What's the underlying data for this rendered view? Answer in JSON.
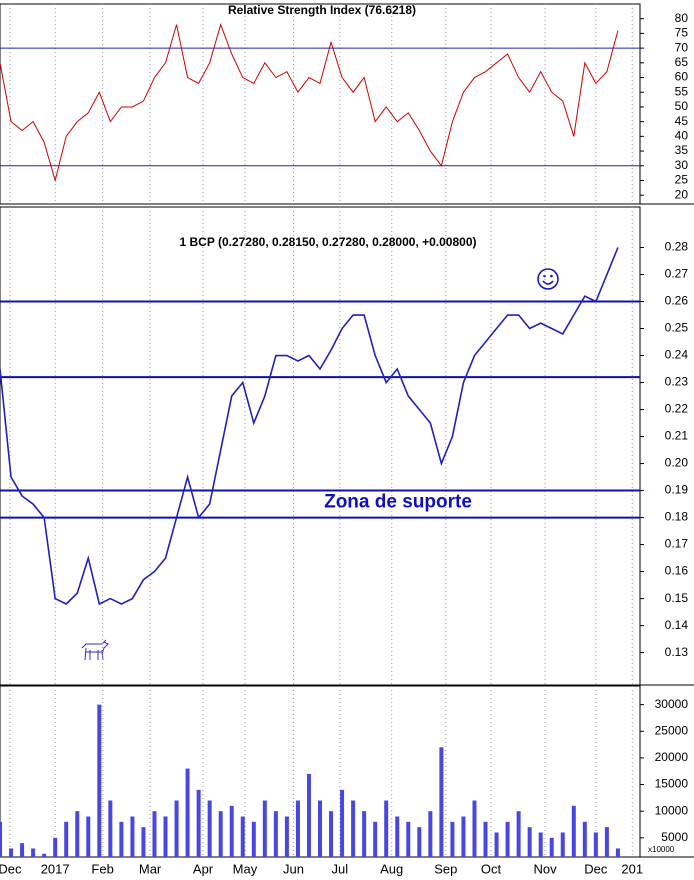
{
  "chart_data": [
    {
      "type": "line",
      "title": "Relative Strength Index (76.6218)",
      "x": [
        0,
        1,
        2,
        3,
        4,
        5,
        6,
        7,
        8,
        9,
        10,
        11,
        12,
        13,
        14,
        15,
        16,
        17,
        18,
        19,
        20,
        21,
        22,
        23,
        24,
        25,
        26,
        27,
        28,
        29,
        30,
        31,
        32,
        33,
        34,
        35,
        36,
        37,
        38,
        39,
        40,
        41,
        42,
        43,
        44,
        45,
        46,
        47,
        48,
        49,
        50,
        51,
        52,
        53,
        54,
        55,
        56
      ],
      "series": [
        {
          "name": "RSI",
          "color": "#d00000",
          "values": [
            65,
            45,
            42,
            45,
            38,
            25,
            40,
            45,
            48,
            55,
            45,
            50,
            50,
            52,
            60,
            65,
            78,
            60,
            58,
            65,
            78,
            68,
            60,
            58,
            65,
            60,
            62,
            55,
            60,
            58,
            72,
            60,
            55,
            60,
            45,
            50,
            45,
            48,
            42,
            35,
            30,
            45,
            55,
            60,
            62,
            65,
            68,
            60,
            55,
            62,
            55,
            52,
            40,
            65,
            58,
            62,
            76
          ]
        }
      ],
      "hlines": [
        70,
        30
      ],
      "hline_color": "#2020b0",
      "xlim": [
        0,
        58
      ],
      "ylim": [
        17,
        85
      ],
      "yticks": [
        20,
        25,
        30,
        35,
        40,
        45,
        50,
        55,
        60,
        65,
        70,
        75,
        80
      ]
    },
    {
      "type": "line",
      "title": "1 BCP (0.27280, 0.28150, 0.27280, 0.28000, +0.00800)",
      "annotation": "Zona de suporte",
      "x": [
        0,
        1,
        2,
        3,
        4,
        5,
        6,
        7,
        8,
        9,
        10,
        11,
        12,
        13,
        14,
        15,
        16,
        17,
        18,
        19,
        20,
        21,
        22,
        23,
        24,
        25,
        26,
        27,
        28,
        29,
        30,
        31,
        32,
        33,
        34,
        35,
        36,
        37,
        38,
        39,
        40,
        41,
        42,
        43,
        44,
        45,
        46,
        47,
        48,
        49,
        50,
        51,
        52,
        53,
        54,
        55,
        56
      ],
      "series": [
        {
          "name": "BCP",
          "color": "#2020c0",
          "values": [
            0.235,
            0.195,
            0.188,
            0.185,
            0.18,
            0.15,
            0.148,
            0.152,
            0.165,
            0.148,
            0.15,
            0.148,
            0.15,
            0.157,
            0.16,
            0.165,
            0.18,
            0.195,
            0.18,
            0.185,
            0.205,
            0.225,
            0.23,
            0.215,
            0.225,
            0.24,
            0.24,
            0.238,
            0.24,
            0.235,
            0.242,
            0.25,
            0.255,
            0.255,
            0.24,
            0.23,
            0.235,
            0.225,
            0.22,
            0.215,
            0.2,
            0.21,
            0.23,
            0.24,
            0.245,
            0.25,
            0.255,
            0.255,
            0.25,
            0.252,
            0.25,
            0.248,
            0.255,
            0.262,
            0.26,
            0.27,
            0.28
          ]
        }
      ],
      "hlines": [
        0.26,
        0.232,
        0.19,
        0.18
      ],
      "hline_color": "#1010b0",
      "xlim": [
        0,
        58
      ],
      "ylim": [
        0.118,
        0.295
      ],
      "yticks": [
        0.13,
        0.14,
        0.15,
        0.16,
        0.17,
        0.18,
        0.19,
        {
          "value": 0.2,
          "label": "0.20"
        },
        0.21,
        0.22,
        0.23,
        0.24,
        0.25,
        0.26,
        0.27,
        0.28
      ]
    },
    {
      "type": "bar",
      "unit_label": "x10000",
      "color": "#4848e0",
      "x": [
        0,
        1,
        2,
        3,
        4,
        5,
        6,
        7,
        8,
        9,
        10,
        11,
        12,
        13,
        14,
        15,
        16,
        17,
        18,
        19,
        20,
        21,
        22,
        23,
        24,
        25,
        26,
        27,
        28,
        29,
        30,
        31,
        32,
        33,
        34,
        35,
        36,
        37,
        38,
        39,
        40,
        41,
        42,
        43,
        44,
        45,
        46,
        47,
        48,
        49,
        50,
        51,
        52,
        53,
        54,
        55,
        56
      ],
      "values": [
        8000,
        3000,
        4000,
        3000,
        2000,
        5000,
        8000,
        10000,
        9000,
        30000,
        12000,
        8000,
        9000,
        7000,
        10000,
        9000,
        12000,
        18000,
        14000,
        12000,
        10000,
        11000,
        9000,
        8000,
        12000,
        10000,
        9000,
        12000,
        17000,
        12000,
        10000,
        14000,
        12000,
        10000,
        8000,
        12000,
        9000,
        8000,
        7000,
        10000,
        22000,
        8000,
        9000,
        12000,
        8000,
        6000,
        8000,
        10000,
        7000,
        6000,
        5000,
        6000,
        11000,
        8000,
        6000,
        7000,
        3000
      ],
      "xlim": [
        0,
        58
      ],
      "ylim": [
        1400,
        33500
      ],
      "yticks": [
        5000,
        10000,
        15000,
        20000,
        25000,
        30000
      ],
      "xticks": [
        {
          "value": 0.9,
          "label": "Dec"
        },
        {
          "value": 5,
          "label": "2017"
        },
        {
          "value": 9.3,
          "label": "Feb"
        },
        {
          "value": 13.6,
          "label": "Mar"
        },
        {
          "value": 18.4,
          "label": "Apr"
        },
        {
          "value": 22.2,
          "label": "May"
        },
        {
          "value": 26.6,
          "label": "Jun"
        },
        {
          "value": 30.8,
          "label": "Jul"
        },
        {
          "value": 35.5,
          "label": "Aug"
        },
        {
          "value": 40.4,
          "label": "Sep"
        },
        {
          "value": 44.5,
          "label": "Oct"
        },
        {
          "value": 49.4,
          "label": "Nov"
        },
        {
          "value": 54,
          "label": "Dec"
        },
        {
          "value": 57.3,
          "label": "201"
        }
      ]
    }
  ]
}
